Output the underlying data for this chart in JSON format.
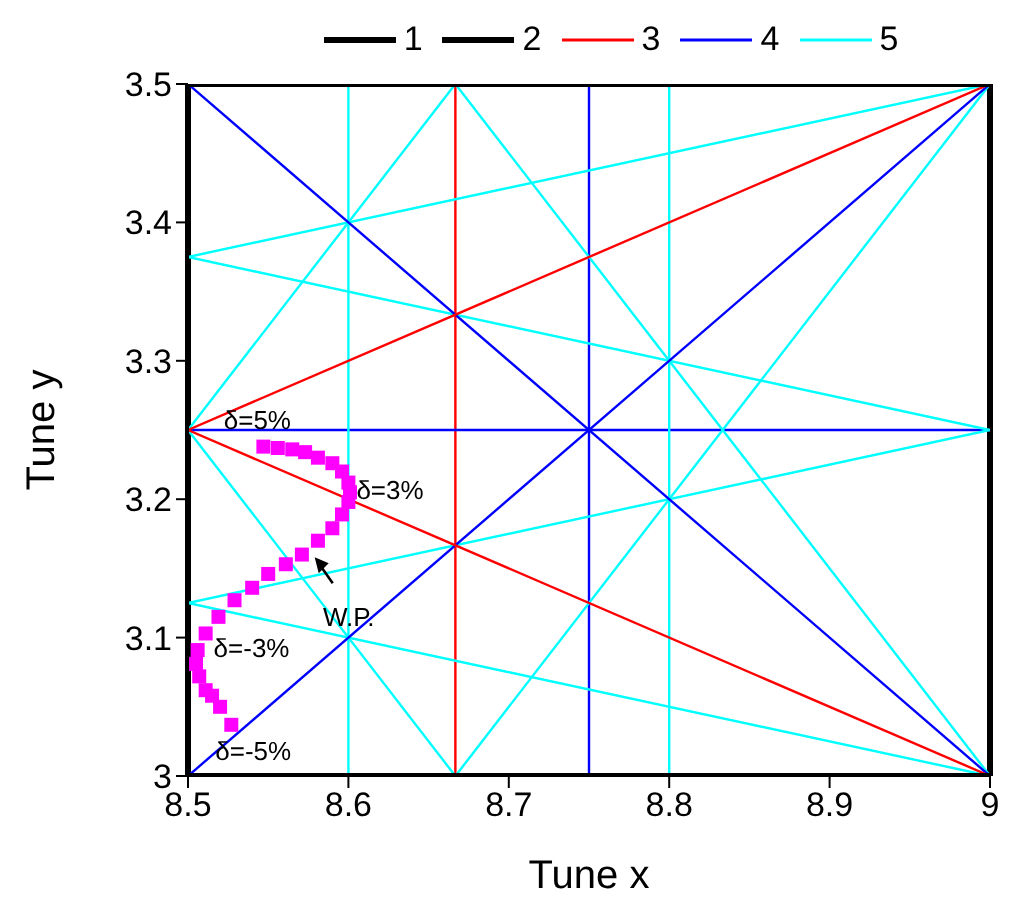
{
  "chart_data": {
    "type": "line",
    "xlabel": "Tune x",
    "ylabel": "Tune y",
    "xlim": [
      8.5,
      9
    ],
    "ylim": [
      3,
      3.5
    ],
    "xticks": [
      8.5,
      8.6,
      8.7,
      8.8,
      8.9,
      9
    ],
    "yticks": [
      3,
      3.1,
      3.2,
      3.3,
      3.4,
      3.5
    ],
    "legend": "top",
    "line_style": "solid",
    "series": [
      {
        "name": "1",
        "color": "#000000",
        "x": [
          8.5,
          9
        ],
        "values": [
          3,
          3
        ]
      },
      {
        "name": "2",
        "color": "#000000",
        "x": [
          8.5,
          9
        ],
        "values": [
          3.5,
          3.5
        ]
      },
      {
        "name": "3",
        "color": "#ff0000",
        "x": [
          8.5,
          9
        ],
        "values": [
          3.25,
          3.5
        ]
      },
      {
        "color": "#ff0000",
        "x": [
          8.5,
          9
        ],
        "values": [
          3.25,
          3
        ]
      },
      {
        "name": "4",
        "color": "#0000ff",
        "x": [
          8.5,
          9
        ],
        "values": [
          3.5,
          3
        ]
      },
      {
        "color": "#0000ff",
        "x": [
          8.5,
          9
        ],
        "values": [
          3,
          3.5
        ]
      },
      {
        "name": "5",
        "color": "#00ffff",
        "x": [
          8.5,
          9
        ],
        "values": [
          3.375,
          3.5
        ]
      },
      {
        "color": "#00ffff",
        "x": [
          8.5,
          9
        ],
        "values": [
          3.375,
          3.25
        ]
      },
      {
        "color": "#00ffff",
        "x": [
          8.5,
          9
        ],
        "values": [
          3.125,
          3.25
        ]
      },
      {
        "color": "#00ffff",
        "x": [
          8.5,
          9
        ],
        "values": [
          3.125,
          3
        ]
      },
      {
        "color": "#00ffff",
        "x": [
          8.5,
          8.6667
        ],
        "values": [
          3.25,
          3
        ]
      },
      {
        "color": "#00ffff",
        "x": [
          8.5,
          8.6667
        ],
        "values": [
          3.25,
          3.5
        ]
      },
      {
        "color": "#00ffff",
        "x": [
          8.6667,
          9
        ],
        "values": [
          3.5,
          3
        ]
      },
      {
        "color": "#00ffff",
        "x": [
          8.6667,
          9
        ],
        "values": [
          3,
          3.5
        ]
      },
      {
        "color": "#ff00ff",
        "type": "scatter",
        "marker": "square",
        "x": [
          8.547,
          8.556,
          8.565,
          8.573,
          8.581,
          8.59,
          8.596,
          8.6,
          8.601,
          8.6,
          8.596,
          8.59,
          8.581,
          8.571,
          8.561,
          8.55,
          8.54,
          8.529,
          8.519,
          8.511,
          8.506,
          8.505,
          8.507,
          8.511,
          8.515,
          8.52,
          8.527
        ],
        "values": [
          3.238,
          3.237,
          3.236,
          3.234,
          3.23,
          3.226,
          3.22,
          3.212,
          3.205,
          3.198,
          3.189,
          3.179,
          3.17,
          3.16,
          3.153,
          3.146,
          3.136,
          3.127,
          3.115,
          3.103,
          3.091,
          3.081,
          3.072,
          3.062,
          3.058,
          3.05,
          3.037
        ]
      }
    ],
    "ref_lines": [
      {
        "axis": "x",
        "value": 8.5,
        "color": "#000000"
      },
      {
        "axis": "x",
        "value": 9,
        "color": "#000000"
      },
      {
        "axis": "x",
        "value": 8.6667,
        "color": "#ff0000"
      },
      {
        "axis": "x",
        "value": 8.75,
        "color": "#0000ff"
      },
      {
        "axis": "y",
        "value": 3.25,
        "color": "#0000ff"
      },
      {
        "axis": "x",
        "value": 8.6,
        "color": "#00ffff"
      },
      {
        "axis": "x",
        "value": 8.8,
        "color": "#00ffff"
      }
    ],
    "annotations": [
      {
        "text": "δ=5%",
        "x": 8.547,
        "y": 3.238
      },
      {
        "text": "δ=3%",
        "x": 8.6,
        "y": 3.212
      },
      {
        "text": "W.P.",
        "x": 8.579,
        "y": 3.158
      },
      {
        "text": "δ=-3%",
        "x": 8.506,
        "y": 3.091
      },
      {
        "text": "δ=-5%",
        "x": 8.527,
        "y": 3.037
      }
    ]
  }
}
